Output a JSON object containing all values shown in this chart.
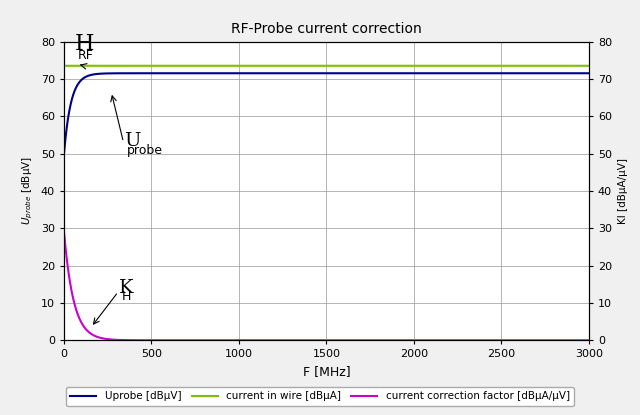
{
  "title": "RF-Probe current correction",
  "xlabel": "F [MHz]",
  "ylabel_left": "Uₛprobe [dBµV]",
  "ylabel_right_label": "KI [dBµA/µV]",
  "xlim": [
    0,
    3000
  ],
  "ylim": [
    0,
    80
  ],
  "xticks": [
    0,
    500,
    1000,
    1500,
    2000,
    2500,
    3000
  ],
  "yticks": [
    0,
    10,
    20,
    30,
    40,
    50,
    60,
    70,
    80
  ],
  "hrf_level": 73.5,
  "uprobe_asymptote": 71.5,
  "uprobe_start": 50.0,
  "uprobe_tau": 40.0,
  "kh_peak": 29.0,
  "kh_tau": 55.0,
  "colors": {
    "uprobe": "#00008B",
    "current": "#7FBF00",
    "correction": "#CC00CC",
    "grid": "#999999",
    "background": "#f0f0f0",
    "plot_bg": "#ffffff"
  },
  "legend_labels": [
    "Uprobe [dBµV]",
    "current in wire [dBµA]",
    "current correction factor [dBµA/µV]"
  ]
}
